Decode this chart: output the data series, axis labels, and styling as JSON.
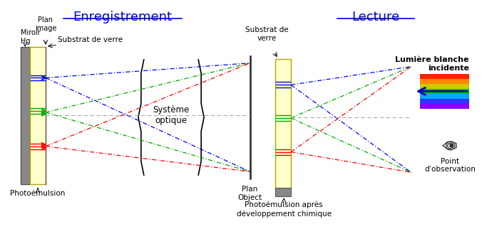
{
  "title_left": "Enregistrement",
  "title_right": "Lecture",
  "title_color": "#0000cc",
  "title_fontsize": 13,
  "bg_color": "#ffffff",
  "text_color": "#000000",
  "labels": {
    "miroir_hg": "Miroir\nHg",
    "plan_image": "Plan\nimage",
    "substrat_left": "Substrat de verre",
    "photoemulsion_left": "Photoémulsion",
    "systeme_optique": "Système\noptique",
    "plan_object": "Plan\nObject",
    "substrat_right": "Substrat de\nverre",
    "photoemulsion_right": "Photoémulsion après\ndéveloppement chimique",
    "lumiere": "Lumière blanche\nincidente",
    "point_obs": "Point\nd’observation"
  },
  "colors": {
    "blue": "#0000ff",
    "green": "#00aa00",
    "red": "#ff0000",
    "gray_dotted": "#aaaaaa"
  }
}
